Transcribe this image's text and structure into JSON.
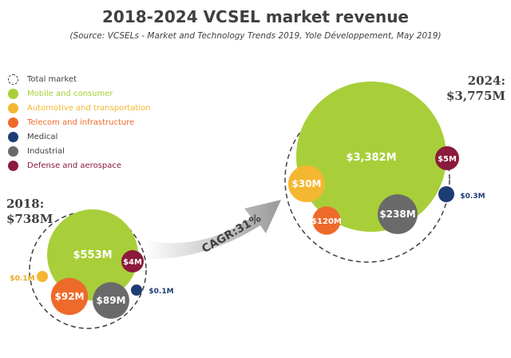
{
  "chart_data": {
    "type": "bubble",
    "title": "2018-2024 VCSEL market revenue",
    "subtitle": "(Source: VCSELs - Market and Technology Trends 2019, Yole Développement, May 2019)",
    "legend": [
      {
        "name": "Total market",
        "color": "#ffffff",
        "text_color": "#404040",
        "dashed": true
      },
      {
        "name": "Mobile and consumer",
        "color": "#a8cf39",
        "text_color": "#a8cf39"
      },
      {
        "name": "Automotive and transportation",
        "color": "#f4b731",
        "text_color": "#f4b731"
      },
      {
        "name": "Telecom and infrastructure",
        "color": "#ee6a2b",
        "text_color": "#ee6a2b"
      },
      {
        "name": "Medical",
        "color": "#1c3c74",
        "text_color": "#404040"
      },
      {
        "name": "Industrial",
        "color": "#6a6a6a",
        "text_color": "#404040"
      },
      {
        "name": "Defense and aerospace",
        "color": "#8b1a3c",
        "text_color": "#8b1a3c"
      }
    ],
    "panels": [
      {
        "year_label": "2018:",
        "total_label": "$738M",
        "total_value": 738,
        "segments": [
          {
            "series": "Mobile and consumer",
            "value": 553,
            "label": "$553M"
          },
          {
            "series": "Telecom and infrastructure",
            "value": 92,
            "label": "$92M"
          },
          {
            "series": "Industrial",
            "value": 89,
            "label": "$89M"
          },
          {
            "series": "Defense and aerospace",
            "value": 4,
            "label": "$4M"
          },
          {
            "series": "Automotive and transportation",
            "value": 0.1,
            "label": "$0.1M"
          },
          {
            "series": "Medical",
            "value": 0.1,
            "label": "$0.1M"
          }
        ]
      },
      {
        "year_label": "2024:",
        "total_label": "$3,775M",
        "total_value": 3775,
        "segments": [
          {
            "series": "Mobile and consumer",
            "value": 3382,
            "label": "$3,382M"
          },
          {
            "series": "Industrial",
            "value": 238,
            "label": "$238M"
          },
          {
            "series": "Telecom and infrastructure",
            "value": 120,
            "label": "$120M"
          },
          {
            "series": "Automotive and transportation",
            "value": 30,
            "label": "$30M"
          },
          {
            "series": "Defense and aerospace",
            "value": 5,
            "label": "$5M"
          },
          {
            "series": "Medical",
            "value": 0.3,
            "label": "$0.3M"
          }
        ]
      }
    ],
    "annotation": "CAGR:31%"
  }
}
